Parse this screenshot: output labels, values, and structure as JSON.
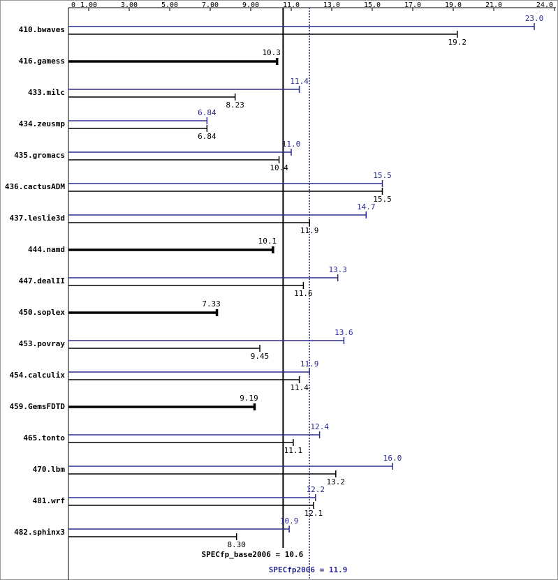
{
  "chart_data": {
    "type": "bar",
    "orientation": "horizontal",
    "categories": [
      "410.bwaves",
      "416.gamess",
      "433.milc",
      "434.zeusmp",
      "435.gromacs",
      "436.cactusADM",
      "437.leslie3d",
      "444.namd",
      "447.dealII",
      "450.soplex",
      "453.povray",
      "454.calculix",
      "459.GemsFDTD",
      "465.tonto",
      "470.lbm",
      "481.wrf",
      "482.sphinx3"
    ],
    "series": [
      {
        "color": "#2b2b8e",
        "values": [
          23.0,
          null,
          11.4,
          6.84,
          11.0,
          15.5,
          14.7,
          null,
          13.3,
          null,
          13.6,
          11.9,
          null,
          12.4,
          16.0,
          12.2,
          10.9
        ],
        "value_labels": [
          "23.0",
          null,
          "11.4",
          "6.84",
          "11.0",
          "15.5",
          "14.7",
          null,
          "13.3",
          null,
          "13.6",
          "11.9",
          null,
          "12.4",
          "16.0",
          "12.2",
          "10.9"
        ]
      },
      {
        "color": "#000000",
        "values": [
          19.2,
          10.3,
          8.23,
          6.84,
          10.4,
          15.5,
          11.9,
          10.1,
          11.6,
          7.33,
          9.45,
          11.4,
          9.19,
          11.1,
          13.2,
          12.1,
          8.3
        ],
        "value_labels": [
          "19.2",
          "10.3",
          "8.23",
          "6.84",
          "10.4",
          "15.5",
          "11.9",
          "10.1",
          "11.6",
          "7.33",
          "9.45",
          "11.4",
          "9.19",
          "11.1",
          "13.2",
          "12.1",
          "8.30"
        ]
      }
    ],
    "xlim": [
      0,
      24.0
    ],
    "xticks": [
      0,
      {
        "value": 1,
        "label": "1.00"
      },
      {
        "value": 3,
        "label": "3.00"
      },
      {
        "value": 5,
        "label": "5.00"
      },
      {
        "value": 7,
        "label": "7.00"
      },
      {
        "value": 9,
        "label": "9.00"
      },
      {
        "value": 11,
        "label": "11.0"
      },
      {
        "value": 13,
        "label": "13.0"
      },
      {
        "value": 15,
        "label": "15.0"
      },
      {
        "value": 17,
        "label": "17.0"
      },
      {
        "value": 19,
        "label": "19.0"
      },
      {
        "value": 21,
        "label": "21.0"
      },
      {
        "value": 24,
        "label": "24.0"
      }
    ],
    "reference_lines": [
      {
        "label": "SPECfp_base2006 = 10.6",
        "value": 10.6,
        "color": "#000000",
        "dashed": false
      },
      {
        "label": "SPECfp2006 = 11.9",
        "value": 11.9,
        "color": "#2b2b8e",
        "dashed": true
      }
    ]
  }
}
